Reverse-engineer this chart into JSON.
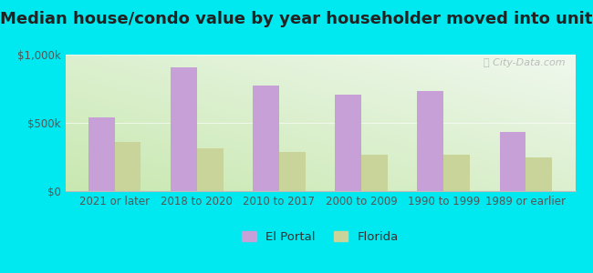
{
  "title": "Median house/condo value by year householder moved into unit",
  "categories": [
    "2021 or later",
    "2018 to 2020",
    "2010 to 2017",
    "2000 to 2009",
    "1990 to 1999",
    "1989 or earlier"
  ],
  "el_portal": [
    540000,
    910000,
    775000,
    710000,
    735000,
    435000
  ],
  "florida": [
    360000,
    315000,
    285000,
    270000,
    265000,
    245000
  ],
  "el_portal_color": "#c8a0d8",
  "florida_color": "#c8d49a",
  "background_outer": "#00e8f0",
  "background_inner_bottom_left": "#c8e8b0",
  "background_inner_top_right": "#f0f8ee",
  "ylim": [
    0,
    1000000
  ],
  "yticks": [
    0,
    500000,
    1000000
  ],
  "ytick_labels": [
    "$0",
    "$500k",
    "$1,000k"
  ],
  "watermark": "ⓘ City-Data.com",
  "legend_labels": [
    "El Portal",
    "Florida"
  ],
  "title_fontsize": 13,
  "tick_fontsize": 8.5,
  "legend_fontsize": 9.5
}
